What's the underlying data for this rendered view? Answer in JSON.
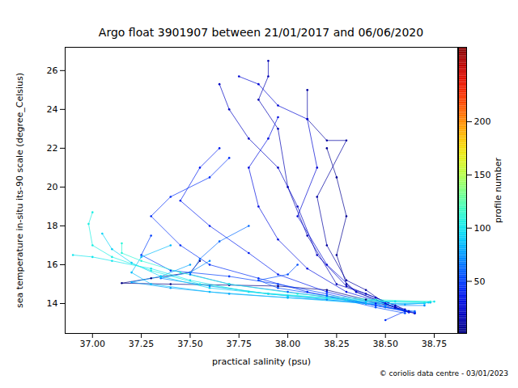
{
  "chart_data": {
    "type": "line",
    "title": "Argo float 3901907 between 21/01/2017 and 06/06/2020",
    "x_label": "practical salinity (psu)",
    "y_label": "sea temperature in-situ its-90 scale (degree_Celsius)",
    "caption": "© coriolis data centre - 03/01/2023",
    "color": "jet",
    "marker": "dot",
    "line_style": "solid",
    "grid": false,
    "xlim": [
      36.86,
      38.87
    ],
    "xticks": [
      {
        "value": 37.0,
        "label": "37.00"
      },
      {
        "value": 37.25,
        "label": "37.25"
      },
      {
        "value": 37.5,
        "label": "37.50"
      },
      {
        "value": 37.75,
        "label": "37.75"
      },
      {
        "value": 38.0,
        "label": "38.00"
      },
      {
        "value": 38.25,
        "label": "38.25"
      },
      {
        "value": 38.5,
        "label": "38.50"
      },
      {
        "value": 38.75,
        "label": "38.75"
      }
    ],
    "ylim": [
      12.46,
      27.2
    ],
    "yticks": [
      14,
      16,
      18,
      20,
      22,
      24,
      26
    ],
    "colorbar": {
      "label": "profile number",
      "range": [
        1,
        270
      ],
      "ticks": [
        50,
        100,
        150,
        200
      ]
    },
    "profiles": [
      {
        "profile": 2,
        "salinity": [
          37.55,
          37.5,
          37.3,
          37.15,
          37.4,
          37.7,
          37.95,
          38.2,
          38.4,
          38.55,
          38.62
        ],
        "temperature": [
          16.2,
          15.6,
          15.3,
          15.05,
          15.0,
          14.95,
          14.9,
          14.7,
          14.2,
          13.8,
          13.6
        ]
      },
      {
        "profile": 6,
        "salinity": [
          38.2,
          38.25,
          38.3,
          38.25,
          38.3,
          38.35,
          38.45,
          38.55,
          38.6
        ],
        "temperature": [
          22.0,
          20.5,
          18.5,
          16.5,
          15.0,
          14.6,
          14.2,
          13.8,
          13.6
        ]
      },
      {
        "profile": 10,
        "salinity": [
          38.1,
          38.1,
          38.2,
          38.3,
          38.15,
          38.2,
          38.3,
          38.4,
          38.5,
          38.6,
          38.65
        ],
        "temperature": [
          25.0,
          23.5,
          22.4,
          22.4,
          19.5,
          17.0,
          15.2,
          14.7,
          14.0,
          13.6,
          13.5
        ]
      },
      {
        "profile": 15,
        "salinity": [
          37.9,
          37.9,
          37.85,
          37.95,
          38.0,
          38.1,
          38.25,
          38.4,
          38.55,
          38.62
        ],
        "temperature": [
          26.5,
          25.7,
          24.5,
          23.0,
          20.0,
          17.5,
          15.0,
          14.5,
          13.9,
          13.55
        ]
      },
      {
        "profile": 20,
        "salinity": [
          37.65,
          37.7,
          37.8,
          37.95,
          38.05,
          38.15,
          38.3,
          38.45,
          38.6
        ],
        "temperature": [
          25.3,
          24.0,
          22.5,
          21.0,
          19.0,
          16.5,
          14.9,
          14.3,
          13.7
        ]
      },
      {
        "profile": 25,
        "salinity": [
          37.75,
          37.85,
          37.95,
          38.1,
          38.15,
          38.05,
          38.2,
          38.35,
          38.55,
          38.65
        ],
        "temperature": [
          25.7,
          25.3,
          24.2,
          23.5,
          21.0,
          18.5,
          16.0,
          14.6,
          13.8,
          13.5
        ]
      },
      {
        "profile": 30,
        "salinity": [
          37.95,
          37.9,
          37.8,
          37.85,
          37.95,
          38.1,
          38.3,
          38.5,
          38.6
        ],
        "temperature": [
          23.6,
          22.5,
          21.0,
          19.0,
          17.3,
          15.8,
          14.6,
          14.0,
          13.6
        ]
      },
      {
        "profile": 38,
        "salinity": [
          37.65,
          37.55,
          37.45,
          37.6,
          37.8,
          37.95,
          38.2,
          38.45,
          38.62
        ],
        "temperature": [
          22.0,
          21.0,
          19.3,
          18.0,
          16.6,
          15.5,
          14.6,
          14.0,
          13.55
        ]
      },
      {
        "profile": 45,
        "salinity": [
          37.7,
          37.6,
          37.4,
          37.3,
          37.45,
          37.6,
          37.85,
          38.1,
          38.4,
          38.6,
          38.5
        ],
        "temperature": [
          21.5,
          20.5,
          19.5,
          18.5,
          17.0,
          16.0,
          15.3,
          14.6,
          14.0,
          13.6,
          13.15
        ]
      },
      {
        "profile": 50,
        "salinity": [
          37.3,
          37.25,
          37.4,
          37.7,
          37.95,
          38.2,
          38.45,
          38.65
        ],
        "temperature": [
          17.5,
          16.5,
          15.7,
          15.4,
          15.0,
          14.5,
          13.9,
          13.55
        ]
      },
      {
        "profile": 55,
        "salinity": [
          38.05,
          38.0,
          37.85,
          37.95,
          38.2,
          38.45,
          38.6
        ],
        "temperature": [
          16.0,
          15.5,
          15.2,
          14.8,
          14.4,
          13.8,
          13.5
        ]
      },
      {
        "profile": 62,
        "salinity": [
          37.8,
          37.65,
          37.55,
          37.5,
          37.7,
          38.0,
          38.3,
          38.5,
          38.65
        ],
        "temperature": [
          18.0,
          17.2,
          16.3,
          15.5,
          15.0,
          14.6,
          14.2,
          13.8,
          13.6
        ]
      },
      {
        "profile": 70,
        "salinity": [
          37.6,
          37.5,
          37.35,
          37.6,
          37.9,
          38.2,
          38.5,
          38.7
        ],
        "temperature": [
          16.2,
          15.6,
          15.3,
          14.9,
          14.5,
          14.2,
          13.9,
          13.9
        ]
      },
      {
        "profile": 78,
        "salinity": [
          37.5,
          37.35,
          37.2,
          37.4,
          37.7,
          38.0,
          38.35,
          38.6,
          38.73
        ],
        "temperature": [
          16.0,
          15.4,
          15.1,
          14.8,
          14.5,
          14.3,
          14.1,
          13.95,
          14.05
        ]
      },
      {
        "profile": 85,
        "salinity": [
          37.4,
          37.25,
          37.2,
          37.3,
          37.6,
          38.0,
          38.4,
          38.7
        ],
        "temperature": [
          17.0,
          16.4,
          15.6,
          15.0,
          14.6,
          14.3,
          14.0,
          14.0
        ]
      },
      {
        "profile": 92,
        "salinity": [
          37.05,
          37.1,
          37.2,
          37.35,
          37.6,
          38.0,
          38.4,
          38.72
        ],
        "temperature": [
          17.6,
          16.8,
          16.1,
          15.4,
          14.8,
          14.4,
          14.1,
          14.05
        ]
      },
      {
        "profile": 100,
        "salinity": [
          36.9,
          37.0,
          37.1,
          37.3,
          37.5,
          37.8,
          38.2,
          38.55,
          38.75
        ],
        "temperature": [
          16.5,
          16.4,
          16.2,
          15.8,
          15.2,
          14.6,
          14.3,
          14.1,
          14.1
        ]
      },
      {
        "profile": 105,
        "salinity": [
          37.0,
          36.98,
          37.0,
          37.1,
          37.3,
          37.55,
          37.9,
          38.3,
          38.7
        ],
        "temperature": [
          18.7,
          18.1,
          17.0,
          16.4,
          15.7,
          15.0,
          14.5,
          14.2,
          14.05
        ]
      },
      {
        "profile": 110,
        "salinity": [
          37.15,
          37.15,
          37.25,
          37.45,
          37.7,
          38.05,
          38.45,
          38.73
        ],
        "temperature": [
          17.1,
          16.6,
          16.2,
          15.6,
          15.0,
          14.5,
          14.2,
          14.1
        ]
      }
    ]
  }
}
